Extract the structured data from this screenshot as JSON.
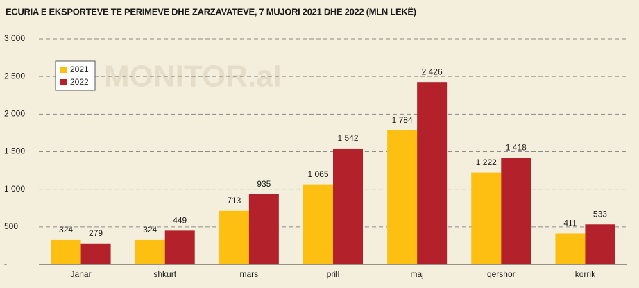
{
  "chart_data": {
    "type": "bar",
    "title": "ECURIA E EKSPORTEVE TE PERIMEVE DHE ZARZAVATEVE, 7 MUJORI 2021 DHE 2022 (MLN LEKË)",
    "watermark": "MONITOR.al",
    "categories": [
      "Janar",
      "shkurt",
      "mars",
      "prill",
      "maj",
      "qershor",
      "korrik"
    ],
    "series": [
      {
        "name": "2021",
        "color": "#fdbf12",
        "values": [
          324,
          324,
          713,
          1065,
          1784,
          1222,
          411
        ],
        "value_labels": [
          "324",
          "324",
          "713",
          "1 065",
          "1 784",
          "1 222",
          "411"
        ]
      },
      {
        "name": "2022",
        "color": "#b3222b",
        "values": [
          279,
          449,
          935,
          1542,
          2426,
          1418,
          533
        ],
        "value_labels": [
          "279",
          "449",
          "935",
          "1 542",
          "2 426",
          "1 418",
          "533"
        ]
      }
    ],
    "ylim": [
      0,
      3000
    ],
    "yticks": [
      {
        "value": 0,
        "label": "-"
      },
      {
        "value": 500,
        "label": "500"
      },
      {
        "value": 1000,
        "label": "1 000"
      },
      {
        "value": 1500,
        "label": "1 500"
      },
      {
        "value": 2000,
        "label": "2 000"
      },
      {
        "value": 2500,
        "label": "2 500"
      },
      {
        "value": 3000,
        "label": "3 000"
      }
    ],
    "grid": true,
    "legend": "upper-left"
  }
}
